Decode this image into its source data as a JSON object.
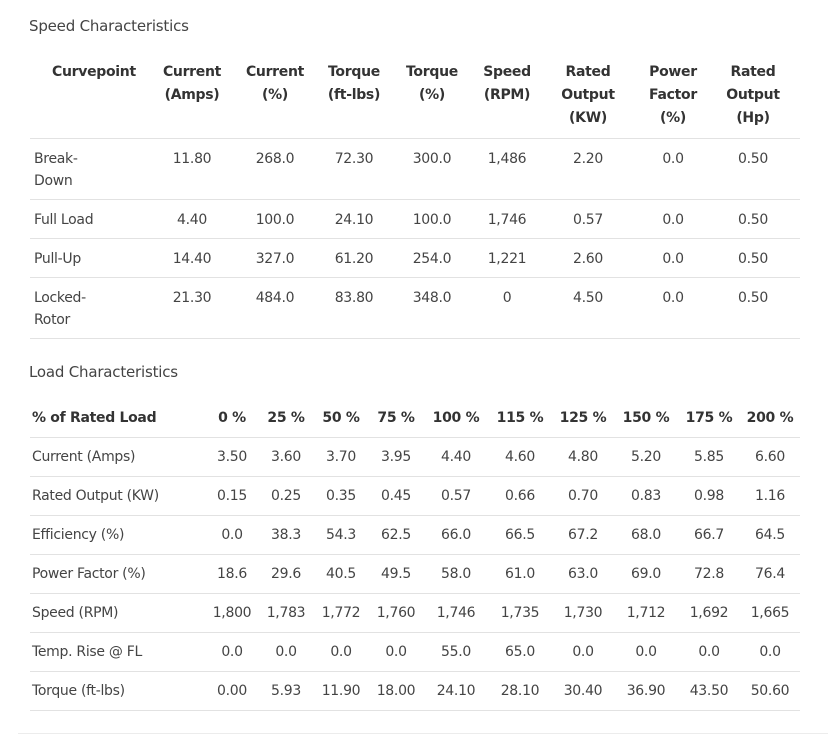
{
  "speed": {
    "title": "Speed Characteristics",
    "headers": [
      [
        "Curvepoint"
      ],
      [
        "Current",
        "(Amps)"
      ],
      [
        "Current",
        "(%)"
      ],
      [
        "Torque",
        "(ft-lbs)"
      ],
      [
        "Torque",
        "(%)"
      ],
      [
        "Speed",
        "(RPM)"
      ],
      [
        "Rated",
        "Output",
        "(KW)"
      ],
      [
        "Power",
        "Factor",
        "(%)"
      ],
      [
        "Rated",
        "Output",
        "(Hp)"
      ]
    ],
    "rows": [
      {
        "name": [
          "Break-",
          "Down"
        ],
        "values": [
          "11.80",
          "268.0",
          "72.30",
          "300.0",
          "1,486",
          "2.20",
          "0.0",
          "0.50"
        ]
      },
      {
        "name": [
          "Full Load"
        ],
        "values": [
          "4.40",
          "100.0",
          "24.10",
          "100.0",
          "1,746",
          "0.57",
          "0.0",
          "0.50"
        ]
      },
      {
        "name": [
          "Pull-Up"
        ],
        "values": [
          "14.40",
          "327.0",
          "61.20",
          "254.0",
          "1,221",
          "2.60",
          "0.0",
          "0.50"
        ]
      },
      {
        "name": [
          "Locked-",
          "Rotor"
        ],
        "values": [
          "21.30",
          "484.0",
          "83.80",
          "348.0",
          "0",
          "4.50",
          "0.0",
          "0.50"
        ]
      }
    ]
  },
  "load": {
    "title": "Load Characteristics",
    "headers": [
      "% of Rated Load",
      "0 %",
      "25 %",
      "50 %",
      "75 %",
      "100 %",
      "115 %",
      "125 %",
      "150 %",
      "175 %",
      "200 %"
    ],
    "rows": [
      {
        "name": "Current (Amps)",
        "values": [
          "3.50",
          "3.60",
          "3.70",
          "3.95",
          "4.40",
          "4.60",
          "4.80",
          "5.20",
          "5.85",
          "6.60"
        ]
      },
      {
        "name": "Rated Output (KW)",
        "values": [
          "0.15",
          "0.25",
          "0.35",
          "0.45",
          "0.57",
          "0.66",
          "0.70",
          "0.83",
          "0.98",
          "1.16"
        ]
      },
      {
        "name": "Efficiency (%)",
        "values": [
          "0.0",
          "38.3",
          "54.3",
          "62.5",
          "66.0",
          "66.5",
          "67.2",
          "68.0",
          "66.7",
          "64.5"
        ]
      },
      {
        "name": "Power Factor (%)",
        "values": [
          "18.6",
          "29.6",
          "40.5",
          "49.5",
          "58.0",
          "61.0",
          "63.0",
          "69.0",
          "72.8",
          "76.4"
        ]
      },
      {
        "name": "Speed (RPM)",
        "values": [
          "1,800",
          "1,783",
          "1,772",
          "1,760",
          "1,746",
          "1,735",
          "1,730",
          "1,712",
          "1,692",
          "1,665"
        ]
      },
      {
        "name": "Temp. Rise @ FL",
        "values": [
          "0.0",
          "0.0",
          "0.0",
          "0.0",
          "55.0",
          "65.0",
          "0.0",
          "0.0",
          "0.0",
          "0.0"
        ]
      },
      {
        "name": "Torque (ft-lbs)",
        "values": [
          "0.00",
          "5.93",
          "11.90",
          "18.00",
          "24.10",
          "28.10",
          "30.40",
          "36.90",
          "43.50",
          "50.60"
        ]
      }
    ]
  }
}
